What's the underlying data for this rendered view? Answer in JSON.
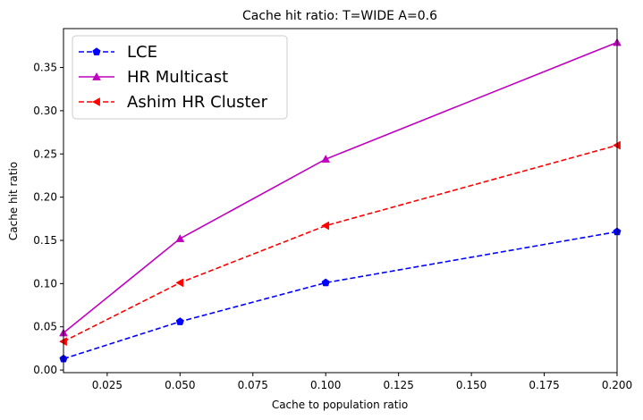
{
  "chart_data": {
    "type": "line",
    "title": "Cache hit ratio: T=WIDE A=0.6",
    "xlabel": "Cache to population ratio",
    "ylabel": "Cache hit ratio",
    "xlim": [
      0.01,
      0.2
    ],
    "ylim": [
      -0.003,
      0.395
    ],
    "xticks": [
      0.025,
      0.05,
      0.075,
      0.1,
      0.125,
      0.15,
      0.175,
      0.2
    ],
    "xtick_labels": [
      "0.025",
      "0.050",
      "0.075",
      "0.100",
      "0.125",
      "0.150",
      "0.175",
      "0.200"
    ],
    "yticks": [
      0.0,
      0.05,
      0.1,
      0.15,
      0.2,
      0.25,
      0.3,
      0.35
    ],
    "ytick_labels": [
      "0.00",
      "0.05",
      "0.10",
      "0.15",
      "0.20",
      "0.25",
      "0.30",
      "0.35"
    ],
    "grid": false,
    "legend_position": "top-left",
    "x": [
      0.01,
      0.05,
      0.1,
      0.2
    ],
    "series": [
      {
        "name": "LCE",
        "values": [
          0.013,
          0.056,
          0.101,
          0.16
        ],
        "color": "#0000ff",
        "dash": "dashed",
        "marker": "pentagon"
      },
      {
        "name": "HR Multicast",
        "values": [
          0.043,
          0.152,
          0.244,
          0.379
        ],
        "color": "#bf00bf",
        "dash": "solid",
        "marker": "triangle-up"
      },
      {
        "name": "Ashim HR Cluster",
        "values": [
          0.033,
          0.101,
          0.167,
          0.26
        ],
        "color": "#ff0000",
        "dash": "dashed",
        "marker": "triangle-left"
      }
    ]
  }
}
